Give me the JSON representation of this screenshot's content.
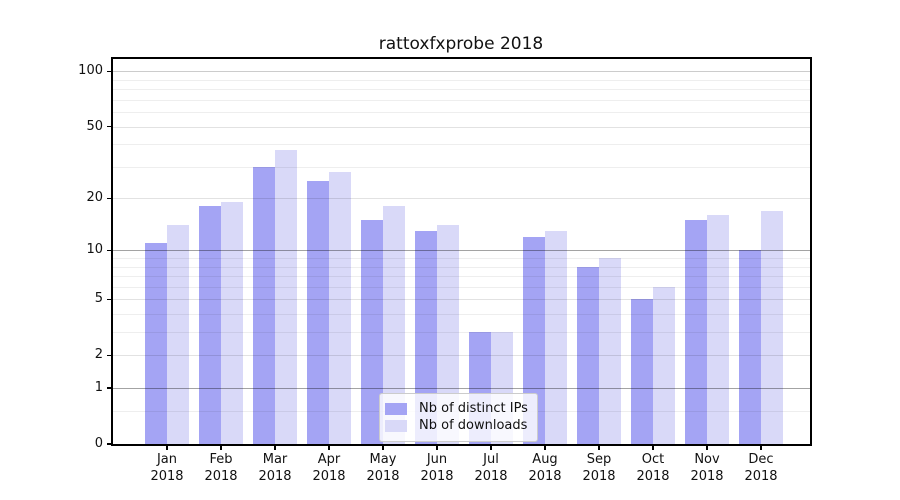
{
  "title": "rattoxfxprobe 2018",
  "chart_data": {
    "type": "bar",
    "title": "rattoxfxprobe 2018",
    "categories": [
      "Jan 2018",
      "Feb 2018",
      "Mar 2018",
      "Apr 2018",
      "May 2018",
      "Jun 2018",
      "Jul 2018",
      "Aug 2018",
      "Sep 2018",
      "Oct 2018",
      "Nov 2018",
      "Dec 2018"
    ],
    "x_tick_months": [
      "Jan",
      "Feb",
      "Mar",
      "Apr",
      "May",
      "Jun",
      "Jul",
      "Aug",
      "Sep",
      "Oct",
      "Nov",
      "Dec"
    ],
    "x_tick_year": "2018",
    "series": [
      {
        "name": "Nb of distinct IPs",
        "color": "#a4a4f4",
        "values": [
          11,
          18,
          30,
          25,
          15,
          13,
          3,
          12,
          8,
          5,
          15,
          10
        ]
      },
      {
        "name": "Nb of downloads",
        "color": "#d9d9f8",
        "values": [
          14,
          19,
          37,
          28,
          18,
          14,
          3,
          13,
          9,
          6,
          16,
          17
        ]
      }
    ],
    "xlabel": "",
    "ylabel": "",
    "yscale": "log1p",
    "ylim": [
      0,
      116
    ],
    "yticks": [
      0,
      1,
      2,
      5,
      10,
      20,
      50,
      100
    ],
    "ytick_labels": [
      "0",
      "1",
      "2",
      "5",
      "10",
      "20",
      "50",
      "100"
    ],
    "yticks_minor": [
      0.5,
      3,
      4,
      6,
      7,
      8,
      9,
      30,
      40,
      60,
      70,
      80,
      90
    ],
    "grid": "horizontal",
    "legend_position": "lower center"
  },
  "legend": {
    "items": [
      {
        "label": "Nb of distinct IPs",
        "color": "#a4a4f4"
      },
      {
        "label": "Nb of downloads",
        "color": "#d9d9f8"
      }
    ]
  }
}
